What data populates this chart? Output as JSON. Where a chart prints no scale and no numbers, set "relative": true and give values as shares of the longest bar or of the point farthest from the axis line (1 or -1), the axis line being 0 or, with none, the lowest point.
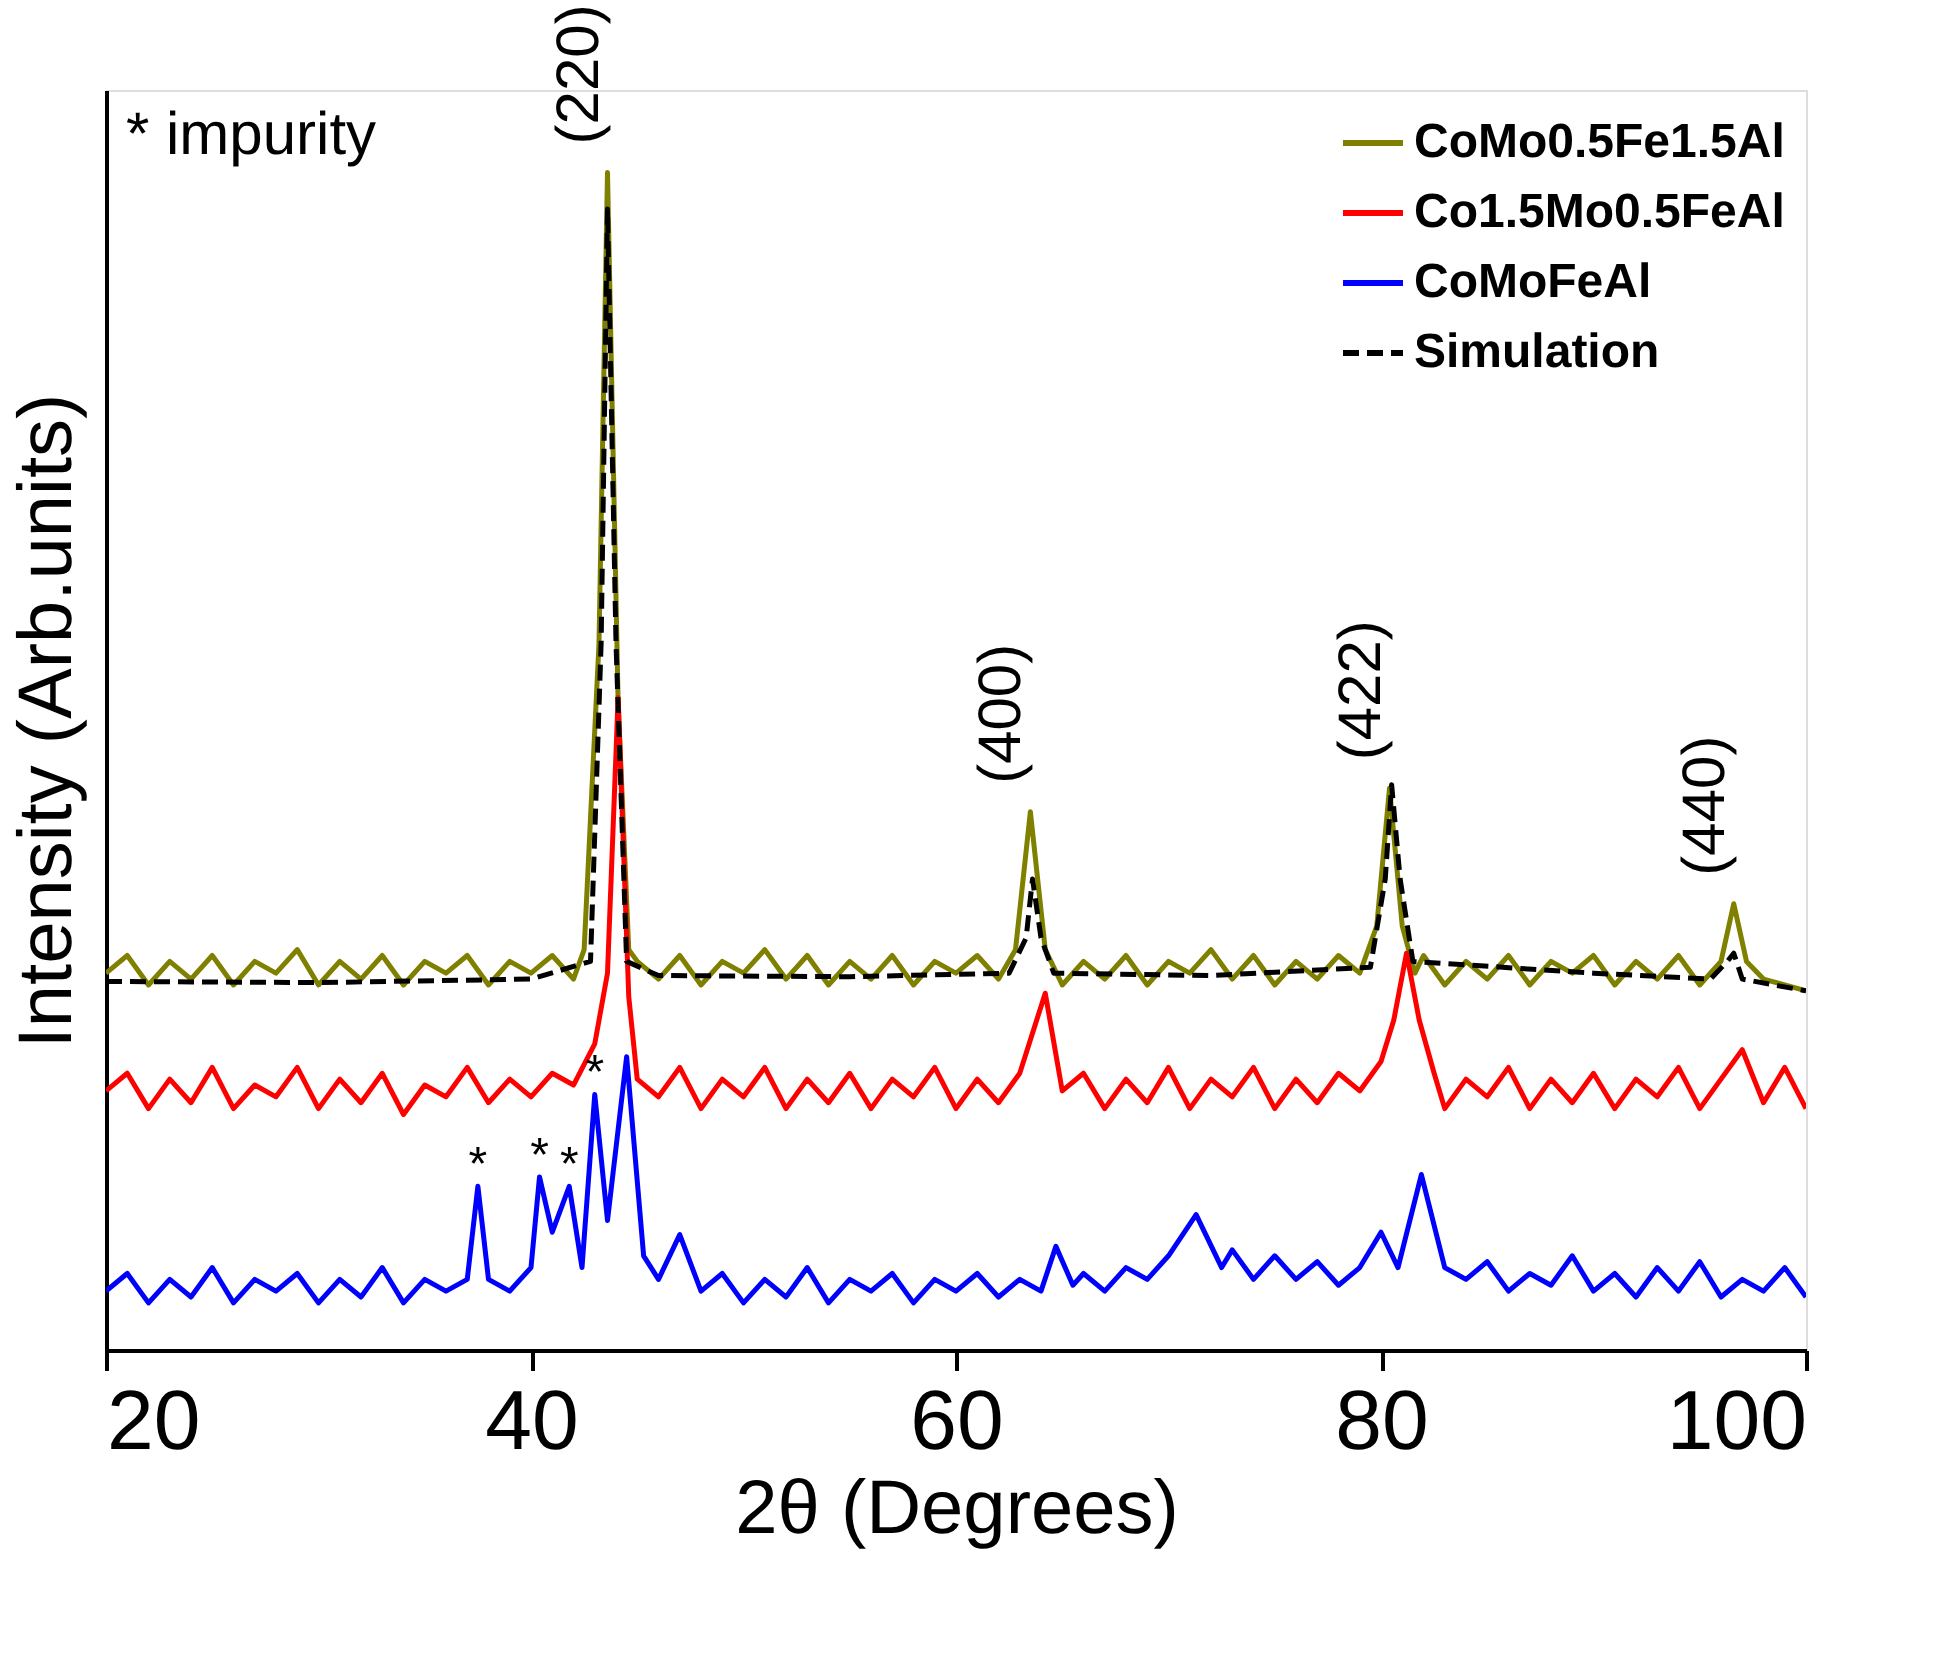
{
  "chart_data": {
    "type": "line",
    "relative": true,
    "xlabel": "2θ (Degrees)",
    "ylabel": "Intensity (Arb.units)",
    "xlim": [
      20,
      100
    ],
    "xticks": [
      20,
      40,
      60,
      80,
      100
    ],
    "grid": false,
    "legend": "top right",
    "series": [
      {
        "name": "CoMo0.5Fe1.5Al",
        "color": "#808000",
        "line_style": "solid",
        "x": [
          20,
          21,
          22,
          23,
          24,
          25,
          26,
          27,
          28,
          29,
          30,
          31,
          32,
          33,
          34,
          35,
          36,
          37,
          38,
          39,
          40,
          41,
          42,
          42.5,
          43.2,
          43.6,
          44.1,
          44.6,
          45,
          46,
          47,
          48,
          49,
          50,
          51,
          52,
          53,
          54,
          55,
          56,
          57,
          58,
          59,
          60,
          61,
          62,
          62.8,
          63.5,
          64.2,
          65,
          66,
          67,
          68,
          69,
          70,
          71,
          72,
          73,
          74,
          75,
          76,
          77,
          78,
          79,
          79.8,
          80.4,
          81,
          81.6,
          82,
          83,
          84,
          85,
          86,
          87,
          88,
          89,
          90,
          91,
          92,
          93,
          94,
          95,
          96,
          96.6,
          97.2,
          98,
          99,
          100
        ],
        "values": [
          0.32,
          0.335,
          0.31,
          0.33,
          0.315,
          0.335,
          0.31,
          0.33,
          0.32,
          0.34,
          0.31,
          0.33,
          0.315,
          0.335,
          0.31,
          0.33,
          0.32,
          0.335,
          0.31,
          0.33,
          0.32,
          0.335,
          0.315,
          0.34,
          0.6,
          1.0,
          0.55,
          0.34,
          0.33,
          0.315,
          0.335,
          0.31,
          0.33,
          0.32,
          0.34,
          0.315,
          0.335,
          0.31,
          0.33,
          0.315,
          0.335,
          0.31,
          0.33,
          0.32,
          0.335,
          0.315,
          0.34,
          0.457,
          0.34,
          0.31,
          0.33,
          0.315,
          0.335,
          0.31,
          0.33,
          0.32,
          0.34,
          0.315,
          0.335,
          0.31,
          0.33,
          0.315,
          0.335,
          0.32,
          0.36,
          0.477,
          0.36,
          0.32,
          0.335,
          0.31,
          0.33,
          0.315,
          0.335,
          0.31,
          0.33,
          0.32,
          0.335,
          0.31,
          0.33,
          0.315,
          0.335,
          0.31,
          0.33,
          0.379,
          0.33,
          0.315,
          0.31,
          0.305
        ]
      },
      {
        "name": "Co1.5Mo0.5FeAl",
        "color": "#ff0000",
        "line_style": "solid",
        "x": [
          20,
          21,
          22,
          23,
          24,
          25,
          26,
          27,
          28,
          29,
          30,
          31,
          32,
          33,
          34,
          35,
          36,
          37,
          38,
          39,
          40,
          41,
          42,
          43,
          43.6,
          44.1,
          44.6,
          45,
          46,
          47,
          48,
          49,
          50,
          51,
          52,
          53,
          54,
          55,
          56,
          57,
          58,
          59,
          60,
          61,
          62,
          63,
          64.2,
          65,
          66,
          67,
          68,
          69,
          70,
          71,
          72,
          73,
          74,
          75,
          76,
          77,
          78,
          79,
          80,
          80.6,
          81.2,
          81.8,
          82.5,
          83,
          84,
          85,
          86,
          87,
          88,
          89,
          90,
          91,
          92,
          93,
          94,
          95,
          96,
          97,
          98,
          99,
          100
        ],
        "values": [
          0.22,
          0.235,
          0.205,
          0.23,
          0.21,
          0.24,
          0.205,
          0.225,
          0.215,
          0.24,
          0.205,
          0.23,
          0.21,
          0.235,
          0.2,
          0.225,
          0.215,
          0.24,
          0.21,
          0.23,
          0.215,
          0.235,
          0.225,
          0.26,
          0.32,
          0.554,
          0.3,
          0.23,
          0.215,
          0.24,
          0.205,
          0.23,
          0.215,
          0.24,
          0.205,
          0.23,
          0.21,
          0.235,
          0.205,
          0.23,
          0.215,
          0.24,
          0.205,
          0.23,
          0.21,
          0.235,
          0.303,
          0.22,
          0.235,
          0.205,
          0.23,
          0.21,
          0.24,
          0.205,
          0.23,
          0.215,
          0.24,
          0.205,
          0.23,
          0.21,
          0.235,
          0.22,
          0.245,
          0.28,
          0.337,
          0.28,
          0.235,
          0.205,
          0.23,
          0.215,
          0.24,
          0.205,
          0.23,
          0.21,
          0.235,
          0.205,
          0.23,
          0.215,
          0.24,
          0.205,
          0.23,
          0.255,
          0.21,
          0.24,
          0.205
        ]
      },
      {
        "name": "CoMoFeAl",
        "color": "#0000ff",
        "line_style": "solid",
        "x": [
          20,
          21,
          22,
          23,
          24,
          25,
          26,
          27,
          28,
          29,
          30,
          31,
          32,
          33,
          34,
          35,
          36,
          37,
          37.5,
          38,
          39,
          40,
          40.4,
          41,
          41.8,
          42.4,
          43,
          43.6,
          44.5,
          45.3,
          46,
          47,
          48,
          49,
          50,
          51,
          52,
          53,
          54,
          55,
          56,
          57,
          58,
          59,
          60,
          61,
          62,
          63,
          64,
          64.7,
          65.5,
          66,
          67,
          68,
          69,
          70,
          71.3,
          72.5,
          73,
          74,
          75,
          76,
          77,
          78,
          79,
          80,
          80.8,
          81.9,
          83,
          84,
          85,
          86,
          87,
          88,
          89,
          90,
          91,
          92,
          93,
          94,
          95,
          96,
          97,
          98,
          99,
          100
        ],
        "values": [
          0.05,
          0.065,
          0.04,
          0.06,
          0.045,
          0.07,
          0.04,
          0.06,
          0.05,
          0.065,
          0.04,
          0.06,
          0.045,
          0.07,
          0.04,
          0.06,
          0.05,
          0.06,
          0.139,
          0.06,
          0.05,
          0.07,
          0.147,
          0.1,
          0.139,
          0.07,
          0.217,
          0.11,
          0.249,
          0.08,
          0.06,
          0.098,
          0.05,
          0.065,
          0.04,
          0.06,
          0.045,
          0.07,
          0.04,
          0.06,
          0.05,
          0.065,
          0.04,
          0.06,
          0.05,
          0.065,
          0.045,
          0.06,
          0.05,
          0.088,
          0.055,
          0.065,
          0.05,
          0.07,
          0.06,
          0.08,
          0.115,
          0.07,
          0.085,
          0.06,
          0.08,
          0.06,
          0.075,
          0.055,
          0.07,
          0.1,
          0.07,
          0.149,
          0.07,
          0.06,
          0.075,
          0.05,
          0.065,
          0.055,
          0.08,
          0.05,
          0.065,
          0.045,
          0.07,
          0.05,
          0.075,
          0.045,
          0.06,
          0.05,
          0.07,
          0.045
        ]
      },
      {
        "name": "Simulation",
        "color": "#000000",
        "line_style": "dashed",
        "x": [
          20,
          30,
          40,
          42.8,
          43.3,
          43.6,
          44.0,
          44.5,
          46,
          55,
          62.5,
          63.3,
          63.6,
          64.0,
          64.6,
          72,
          79.5,
          80.2,
          80.5,
          80.9,
          81.5,
          90,
          95.5,
          96.3,
          96.6,
          97,
          100
        ],
        "values": [
          0.313,
          0.312,
          0.315,
          0.33,
          0.6,
          0.969,
          0.6,
          0.33,
          0.318,
          0.317,
          0.32,
          0.35,
          0.4,
          0.35,
          0.32,
          0.318,
          0.325,
          0.4,
          0.48,
          0.4,
          0.33,
          0.32,
          0.315,
          0.33,
          0.337,
          0.315,
          0.305
        ]
      }
    ],
    "annotations": [
      "* impurity",
      {
        "text": "(220)",
        "x": 43.6,
        "y": 1.0
      },
      {
        "text": "(400)",
        "x": 63.5,
        "y": 0.457
      },
      {
        "text": "(422)",
        "x": 80.4,
        "y": 0.477
      },
      {
        "text": "(440)",
        "x": 96.6,
        "y": 0.379
      },
      {
        "text": "*",
        "x": 37.5,
        "y": 0.139
      },
      {
        "text": "*",
        "x": 40.4,
        "y": 0.147
      },
      {
        "text": "*",
        "x": 41.8,
        "y": 0.139
      },
      {
        "text": "*",
        "x": 43.0,
        "y": 0.217
      }
    ]
  }
}
